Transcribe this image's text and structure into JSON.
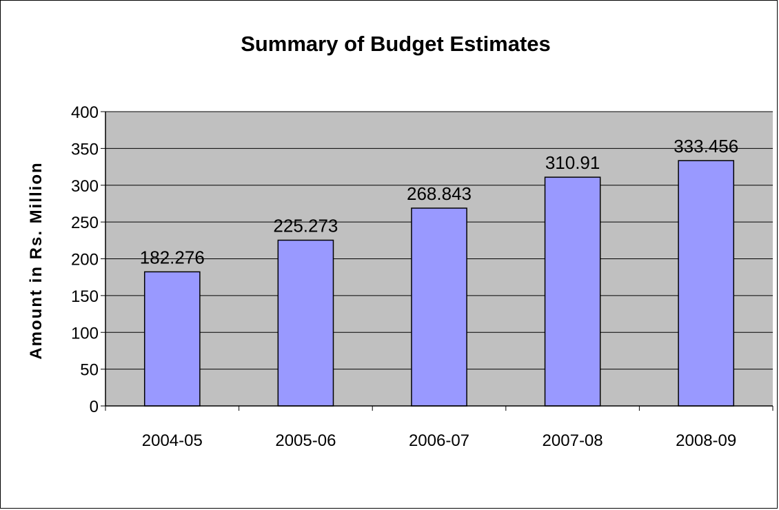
{
  "chart_data": {
    "type": "bar",
    "title": "Summary of Budget Estimates",
    "xlabel": "",
    "ylabel": "Amount in Rs. Million",
    "categories": [
      "2004-05",
      "2005-06",
      "2006-07",
      "2007-08",
      "2008-09"
    ],
    "values": [
      182.276,
      225.273,
      268.843,
      310.91,
      333.456
    ],
    "data_labels": [
      "182.276",
      "225.273",
      "268.843",
      "310.91",
      "333.456"
    ],
    "ylim": [
      0,
      400
    ],
    "yticks": [
      0,
      50,
      100,
      150,
      200,
      250,
      300,
      350,
      400
    ],
    "grid": true,
    "legend": "none",
    "colors": {
      "bar_fill": "#9999ff",
      "bar_stroke": "#000000",
      "plot_background": "#c0c0c0",
      "gridline": "#000000"
    }
  }
}
